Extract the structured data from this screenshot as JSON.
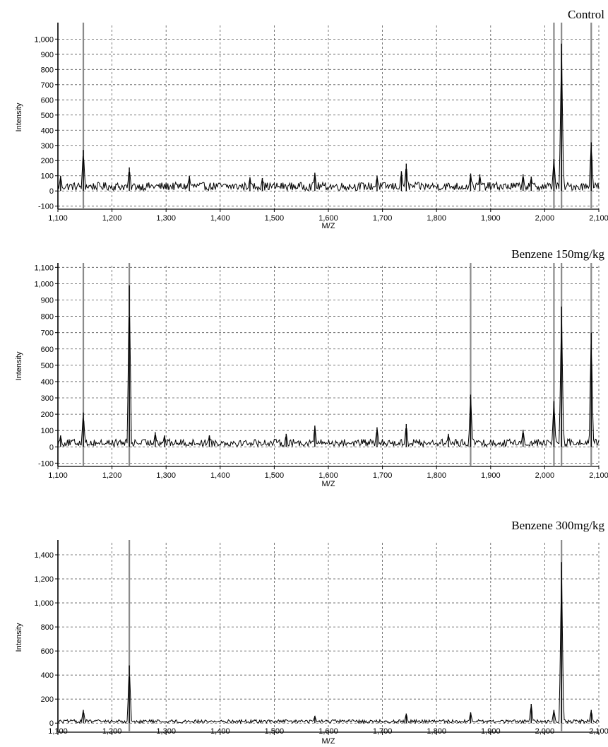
{
  "chart_data": [
    {
      "type": "line",
      "title": "Control",
      "xlabel": "M/Z",
      "ylabel": "Intensity",
      "xlim": [
        1100,
        2100
      ],
      "ylim": [
        -100,
        1100
      ],
      "x_ticks": [
        1100,
        1200,
        1300,
        1400,
        1500,
        1600,
        1700,
        1800,
        1900,
        2000,
        2100
      ],
      "x_tick_labels": [
        "1,100",
        "1,200",
        "1,300",
        "1,400",
        "1,500",
        "1,600",
        "1,700",
        "1,800",
        "1,900",
        "2,000",
        "2,100"
      ],
      "y_ticks": [
        -100,
        0,
        100,
        200,
        300,
        400,
        500,
        600,
        700,
        800,
        900,
        1000
      ],
      "y_tick_labels": [
        "-100",
        "0",
        "100",
        "200",
        "300",
        "400",
        "500",
        "600",
        "700",
        "800",
        "900",
        "1,000"
      ],
      "grid": true,
      "baseline": 30,
      "marker_lines": [
        1147,
        2017,
        2031,
        2086
      ],
      "peaks": [
        {
          "x": 1105,
          "y": 100
        },
        {
          "x": 1147,
          "y": 270
        },
        {
          "x": 1232,
          "y": 155
        },
        {
          "x": 1343,
          "y": 100
        },
        {
          "x": 1455,
          "y": 90
        },
        {
          "x": 1478,
          "y": 85
        },
        {
          "x": 1575,
          "y": 120
        },
        {
          "x": 1690,
          "y": 100
        },
        {
          "x": 1735,
          "y": 130
        },
        {
          "x": 1744,
          "y": 180
        },
        {
          "x": 1863,
          "y": 115
        },
        {
          "x": 1880,
          "y": 110
        },
        {
          "x": 1960,
          "y": 110
        },
        {
          "x": 1975,
          "y": 95
        },
        {
          "x": 2017,
          "y": 210
        },
        {
          "x": 2031,
          "y": 970
        },
        {
          "x": 2086,
          "y": 320
        }
      ]
    },
    {
      "type": "line",
      "title": "Benzene 150mg/kg",
      "xlabel": "M/Z",
      "ylabel": "Intensity",
      "xlim": [
        1100,
        2100
      ],
      "ylim": [
        -100,
        1100
      ],
      "x_ticks": [
        1100,
        1200,
        1300,
        1400,
        1500,
        1600,
        1700,
        1800,
        1900,
        2000,
        2100
      ],
      "x_tick_labels": [
        "1,100",
        "1,200",
        "1,300",
        "1,400",
        "1,500",
        "1,600",
        "1,700",
        "1,800",
        "1,900",
        "2,000",
        "2,100"
      ],
      "y_ticks": [
        -100,
        0,
        100,
        200,
        300,
        400,
        500,
        600,
        700,
        800,
        900,
        1000,
        1100
      ],
      "y_tick_labels": [
        "-100",
        "0",
        "100",
        "200",
        "300",
        "400",
        "500",
        "600",
        "700",
        "800",
        "900",
        "1,000",
        "1,100"
      ],
      "grid": true,
      "baseline": 25,
      "marker_lines": [
        1147,
        1232,
        1863,
        2017,
        2031,
        2086
      ],
      "peaks": [
        {
          "x": 1105,
          "y": 70
        },
        {
          "x": 1147,
          "y": 210
        },
        {
          "x": 1232,
          "y": 990
        },
        {
          "x": 1280,
          "y": 90
        },
        {
          "x": 1297,
          "y": 70
        },
        {
          "x": 1380,
          "y": 70
        },
        {
          "x": 1522,
          "y": 80
        },
        {
          "x": 1575,
          "y": 130
        },
        {
          "x": 1690,
          "y": 120
        },
        {
          "x": 1744,
          "y": 140
        },
        {
          "x": 1822,
          "y": 80
        },
        {
          "x": 1863,
          "y": 320
        },
        {
          "x": 1960,
          "y": 105
        },
        {
          "x": 2017,
          "y": 280
        },
        {
          "x": 2031,
          "y": 860
        },
        {
          "x": 2086,
          "y": 700
        }
      ]
    },
    {
      "type": "line",
      "title": "Benzene 300mg/kg",
      "xlabel": "M/Z",
      "ylabel": "Intensity",
      "xlim": [
        1100,
        2100
      ],
      "ylim": [
        -100,
        1500
      ],
      "x_ticks": [
        1100,
        1200,
        1300,
        1400,
        1500,
        1600,
        1700,
        1800,
        1900,
        2000,
        2100
      ],
      "x_tick_labels": [
        "1,100",
        "1,200",
        "1,300",
        "1,400",
        "1,500",
        "1,600",
        "1,700",
        "1,800",
        "1,900",
        "2,000",
        "2,100"
      ],
      "y_ticks": [
        0,
        200,
        400,
        600,
        800,
        1000,
        1200,
        1400
      ],
      "y_tick_labels": [
        "0",
        "200",
        "400",
        "600",
        "800",
        "1,000",
        "1,200",
        "1,400"
      ],
      "grid": true,
      "baseline": 15,
      "marker_lines": [
        1232,
        2031
      ],
      "peaks": [
        {
          "x": 1147,
          "y": 110
        },
        {
          "x": 1232,
          "y": 480
        },
        {
          "x": 1575,
          "y": 60
        },
        {
          "x": 1744,
          "y": 80
        },
        {
          "x": 1863,
          "y": 90
        },
        {
          "x": 1975,
          "y": 160
        },
        {
          "x": 2017,
          "y": 110
        },
        {
          "x": 2031,
          "y": 1340
        },
        {
          "x": 2086,
          "y": 110
        }
      ]
    }
  ]
}
